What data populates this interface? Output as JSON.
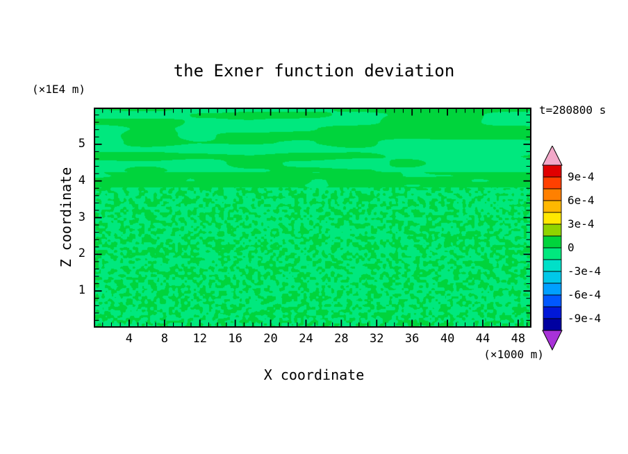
{
  "title": "the Exner function deviation",
  "annotations": {
    "y_units": "(×1E4 m)",
    "x_units": "(×1000 m)",
    "time": "t=280800 s"
  },
  "axes": {
    "x_label": "X coordinate",
    "y_label": "Z coordinate"
  },
  "chart_data": {
    "type": "heatmap",
    "title": "the Exner function deviation",
    "xlabel": "X coordinate",
    "ylabel": "Z coordinate",
    "x_units": "(×1000 m)",
    "y_units": "(×1E4 m)",
    "time_stamp": "t=280800 s",
    "xlim": [
      0,
      49.5
    ],
    "ylim": [
      0,
      6
    ],
    "x_major_ticks": [
      4,
      8,
      12,
      16,
      20,
      24,
      28,
      32,
      36,
      40,
      44,
      48
    ],
    "x_minor_step": 1,
    "y_major_ticks": [
      1,
      2,
      3,
      4,
      5
    ],
    "y_minor_step": 0.2,
    "field": {
      "base_value_band": "-1.5e-4 .. 0",
      "base_color": "#00e87e",
      "patch_value_band": "0 .. 1.5e-4",
      "patch_color": "#00d43c",
      "structure": "smooth elongated horizontal blobs above z=4.2, near-solid band at z=3.9-4.2, fine speckle mixture below z=3.8"
    },
    "colorbar": {
      "segment_interval": 0.00015,
      "labels": [
        "9e-4",
        "6e-4",
        "3e-4",
        "0",
        "-3e-4",
        "-6e-4",
        "-9e-4"
      ],
      "labeled_boundaries": [
        0.0009,
        0.0006,
        0.0003,
        0,
        -0.0003,
        -0.0006,
        -0.0009
      ],
      "over_color": "#f2a8c8",
      "under_color": "#a832d8",
      "segment_colors": [
        "#e00000",
        "#ff4000",
        "#ff8000",
        "#ffb800",
        "#ffe800",
        "#8fd400",
        "#00d43c",
        "#00e87e",
        "#00e0c8",
        "#00c8e8",
        "#00a0ff",
        "#0058ff",
        "#0018d8",
        "#0000a0"
      ]
    }
  }
}
